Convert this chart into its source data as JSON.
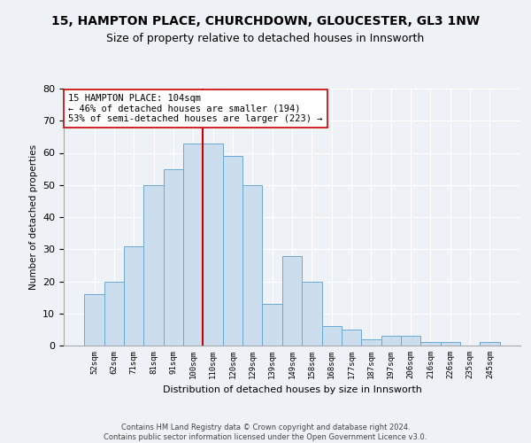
{
  "title1": "15, HAMPTON PLACE, CHURCHDOWN, GLOUCESTER, GL3 1NW",
  "title2": "Size of property relative to detached houses in Innsworth",
  "xlabel": "Distribution of detached houses by size in Innsworth",
  "ylabel": "Number of detached properties",
  "bar_labels": [
    "52sqm",
    "62sqm",
    "71sqm",
    "81sqm",
    "91sqm",
    "100sqm",
    "110sqm",
    "120sqm",
    "129sqm",
    "139sqm",
    "149sqm",
    "158sqm",
    "168sqm",
    "177sqm",
    "187sqm",
    "197sqm",
    "206sqm",
    "216sqm",
    "226sqm",
    "235sqm",
    "245sqm"
  ],
  "bar_heights": [
    16,
    20,
    31,
    50,
    55,
    63,
    63,
    59,
    50,
    13,
    28,
    20,
    6,
    5,
    2,
    3,
    3,
    1,
    1,
    0,
    1
  ],
  "bar_color": "#ccdded",
  "bar_edge_color": "#6aaad4",
  "vline_x": 5.5,
  "vline_color": "#cc0000",
  "annotation_text": "15 HAMPTON PLACE: 104sqm\n← 46% of detached houses are smaller (194)\n53% of semi-detached houses are larger (223) →",
  "annotation_box_color": "#ffffff",
  "annotation_box_edge": "#cc0000",
  "ylim": [
    0,
    80
  ],
  "yticks": [
    0,
    10,
    20,
    30,
    40,
    50,
    60,
    70,
    80
  ],
  "footer1": "Contains HM Land Registry data © Crown copyright and database right 2024.",
  "footer2": "Contains public sector information licensed under the Open Government Licence v3.0.",
  "bg_color": "#eef2f7",
  "plot_bg_color": "#eef2f7",
  "grid_color": "#ffffff",
  "title1_fontsize": 10,
  "title2_fontsize": 9
}
